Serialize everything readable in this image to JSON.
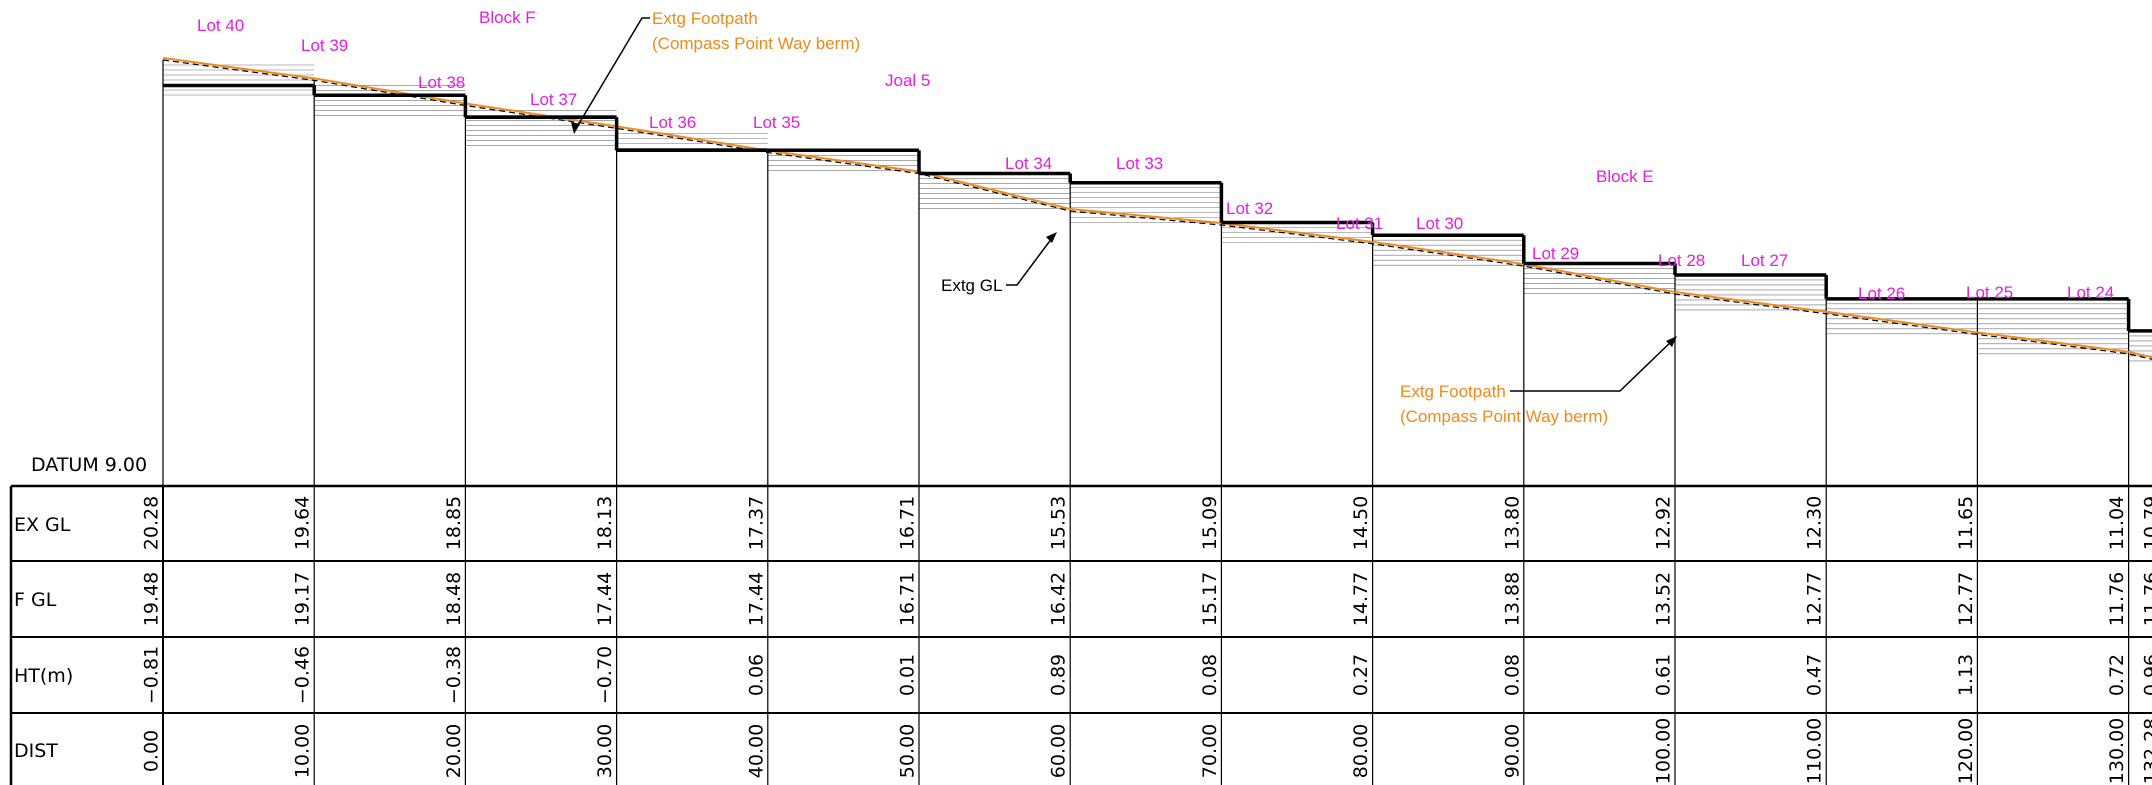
{
  "datum_label": "DATUM 9.00",
  "row_labels": [
    "EX  GL",
    "F  GL",
    "HT(m)",
    "DIST"
  ],
  "stations": [
    {
      "dist": "0.00",
      "ex": "20.28",
      "f": "19.48",
      "ht": "−0.81"
    },
    {
      "dist": "10.00",
      "ex": "19.64",
      "f": "19.17",
      "ht": "−0.46"
    },
    {
      "dist": "20.00",
      "ex": "18.85",
      "f": "18.48",
      "ht": "−0.38"
    },
    {
      "dist": "30.00",
      "ex": "18.13",
      "f": "17.44",
      "ht": "−0.70"
    },
    {
      "dist": "40.00",
      "ex": "17.37",
      "f": "17.44",
      "ht": "0.06"
    },
    {
      "dist": "50.00",
      "ex": "16.71",
      "f": "16.71",
      "ht": "0.01"
    },
    {
      "dist": "60.00",
      "ex": "15.53",
      "f": "16.42",
      "ht": "0.89"
    },
    {
      "dist": "70.00",
      "ex": "15.09",
      "f": "15.17",
      "ht": "0.08"
    },
    {
      "dist": "80.00",
      "ex": "14.50",
      "f": "14.77",
      "ht": "0.27"
    },
    {
      "dist": "90.00",
      "ex": "13.80",
      "f": "13.88",
      "ht": "0.08"
    },
    {
      "dist": "100.00",
      "ex": "12.92",
      "f": "13.52",
      "ht": "0.61"
    },
    {
      "dist": "110.00",
      "ex": "12.30",
      "f": "12.77",
      "ht": "0.47"
    },
    {
      "dist": "120.00",
      "ex": "11.65",
      "f": "12.77",
      "ht": "1.13"
    },
    {
      "dist": "130.00",
      "ex": "11.04",
      "f": "11.76",
      "ht": "0.72"
    },
    {
      "dist": "132.28",
      "ex": "10.79",
      "f": "11.76",
      "ht": "0.96"
    }
  ],
  "lots": [
    "Lot 40",
    "Lot 39",
    "Block F",
    "Lot 38",
    "Lot 37",
    "Lot 36",
    "Lot 35",
    "Joal 5",
    "Lot 34",
    "Lot 33",
    "Lot 32",
    "Lot 31",
    "Lot 30",
    "Block E",
    "Lot 29",
    "Lot 28",
    "Lot 27",
    "Lot 26",
    "Lot 25",
    "Lot 24"
  ],
  "annotations": {
    "footpath_top_1": "Extg Footpath",
    "footpath_top_2": "(Compass Point Way berm)",
    "extg_gl": "Extg GL",
    "footpath_bottom_1": "Extg Footpath",
    "footpath_bottom_2": "(Compass Point Way berm)"
  },
  "colors": {
    "lot_labels": "#e61ee6",
    "footpath": "#f08a1c",
    "lines": "#000000"
  }
}
